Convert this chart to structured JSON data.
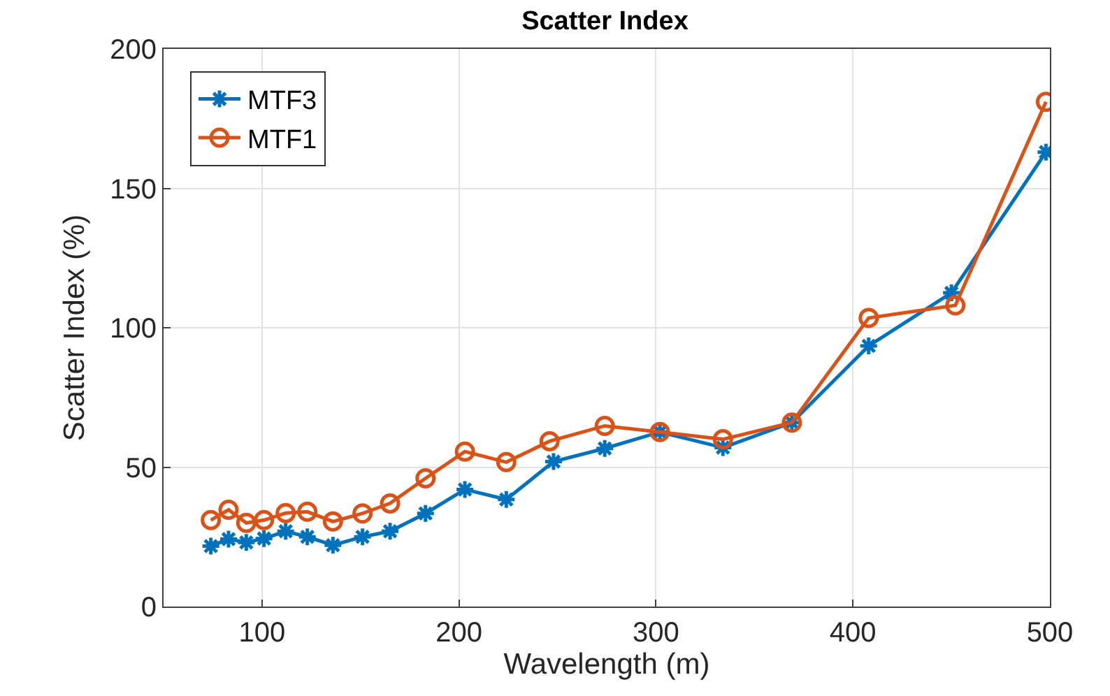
{
  "chart_data": {
    "type": "line",
    "title": "Scatter Index",
    "xlabel": "Wavelength (m)",
    "ylabel": "Scatter Index (%)",
    "xlim": [
      50,
      500
    ],
    "xticks": [
      100,
      200,
      300,
      400,
      500
    ],
    "ylim": [
      0,
      200
    ],
    "yticks": [
      0,
      50,
      100,
      150,
      200
    ],
    "grid": true,
    "legend": "top left",
    "series": [
      {
        "name": "MTF3",
        "color": "#0072bd",
        "marker": "cross",
        "x": [
          74,
          83,
          92,
          101,
          112,
          123,
          136,
          151,
          165,
          183,
          203,
          224,
          248,
          274,
          302,
          334,
          369,
          408,
          450,
          498
        ],
        "values": [
          21.7,
          24.2,
          23,
          24.4,
          27,
          25,
          22,
          25,
          27,
          33.4,
          42,
          38.4,
          52,
          56.7,
          62.6,
          57,
          66,
          93.5,
          112.5,
          163
        ]
      },
      {
        "name": "MTF1",
        "color": "#d95319",
        "marker": "circle",
        "x": [
          74,
          83,
          92,
          101,
          112,
          123,
          136,
          151,
          165,
          183,
          203,
          224,
          246,
          274,
          302,
          334,
          369,
          408,
          452,
          498
        ],
        "values": [
          31,
          34.7,
          30,
          31,
          33.5,
          34,
          30.5,
          33.4,
          37,
          46,
          55.6,
          51.8,
          59.3,
          64.8,
          62.6,
          60,
          66,
          103.5,
          108,
          181
        ]
      }
    ]
  }
}
